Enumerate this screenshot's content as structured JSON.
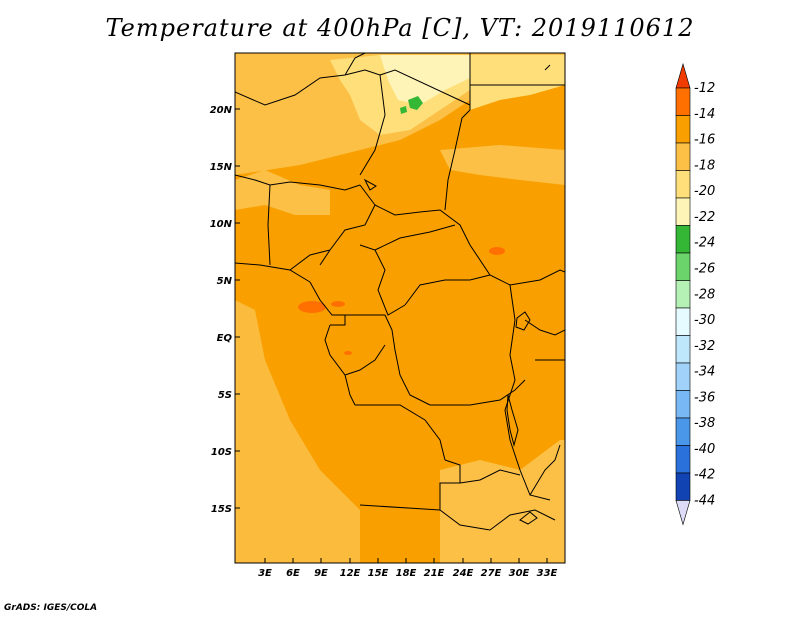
{
  "title": "Temperature at 400hPa [C], VT: 2019110612",
  "footer": "GrADS: IGES/COLA",
  "map": {
    "lat_labels": [
      "20N",
      "15N",
      "10N",
      "5N",
      "EQ",
      "5S",
      "10S",
      "15S"
    ],
    "lon_labels": [
      "3E",
      "6E",
      "9E",
      "12E",
      "15E",
      "18E",
      "21E",
      "24E",
      "27E",
      "30E",
      "33E"
    ],
    "lat_range": [
      -20,
      25
    ],
    "lon_range": [
      0,
      35
    ],
    "borders": "black",
    "frame": "black"
  },
  "colorbar": {
    "labels": [
      "-12",
      "-14",
      "-16",
      "-18",
      "-20",
      "-22",
      "-24",
      "-26",
      "-28",
      "-30",
      "-32",
      "-34",
      "-36",
      "-38",
      "-40",
      "-42",
      "-44"
    ],
    "colors_top_to_bottom": [
      "#f03c00",
      "#ff7000",
      "#f9a000",
      "#fcc047",
      "#fedf7a",
      "#fff4b8",
      "#34b734",
      "#6bd46b",
      "#b5f0b5",
      "#e6fbff",
      "#bfe7fb",
      "#a0d2fa",
      "#78b9f5",
      "#4a97ea",
      "#2b71dc",
      "#1243b3",
      "#0a0f6e"
    ],
    "top_arrow_color": "#f03c00",
    "bottom_arrow_color": "#dcdcf8"
  }
}
